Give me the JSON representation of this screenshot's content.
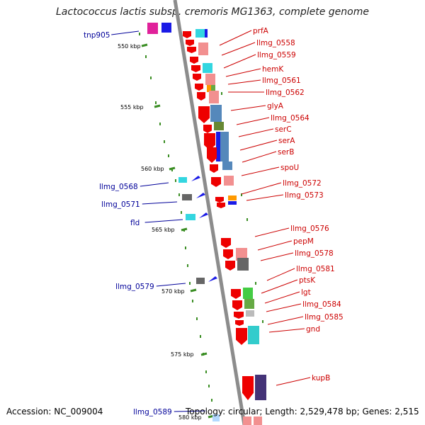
{
  "title": "Lactococcus lactis subsp. cremoris MG1363, complete genome",
  "footer": {
    "accession": "Accession: NC_009004",
    "topology": "Topology: circular; Length: 2,529,478 bp; Genes: 2,515"
  },
  "colors": {
    "backbone": "#8c8c8c",
    "tick": "#3b8e24",
    "forward_label": "#000099",
    "reverse_label": "#cc0000"
  },
  "scale_labels": [
    "550 kbp",
    "555 kbp",
    "560 kbp",
    "565 kbp",
    "570 kbp",
    "575 kbp",
    "580 kbp"
  ],
  "left_genes": [
    "tnp905",
    "llmg_0568",
    "llmg_0571",
    "fld",
    "llmg_0579",
    "llmg_0589"
  ],
  "right_genes": [
    "prfA",
    "llmg_0558",
    "llmg_0559",
    "hemK",
    "llmg_0561",
    "llmg_0562",
    "glyA",
    "llmg_0564",
    "serC",
    "serA",
    "serB",
    "spoU",
    "llmg_0572",
    "llmg_0573",
    "llmg_0576",
    "pepM",
    "llmg_0578",
    "llmg_0581",
    "ptsK",
    "lgt",
    "llmg_0584",
    "llmg_0585",
    "gnd",
    "kupB"
  ]
}
